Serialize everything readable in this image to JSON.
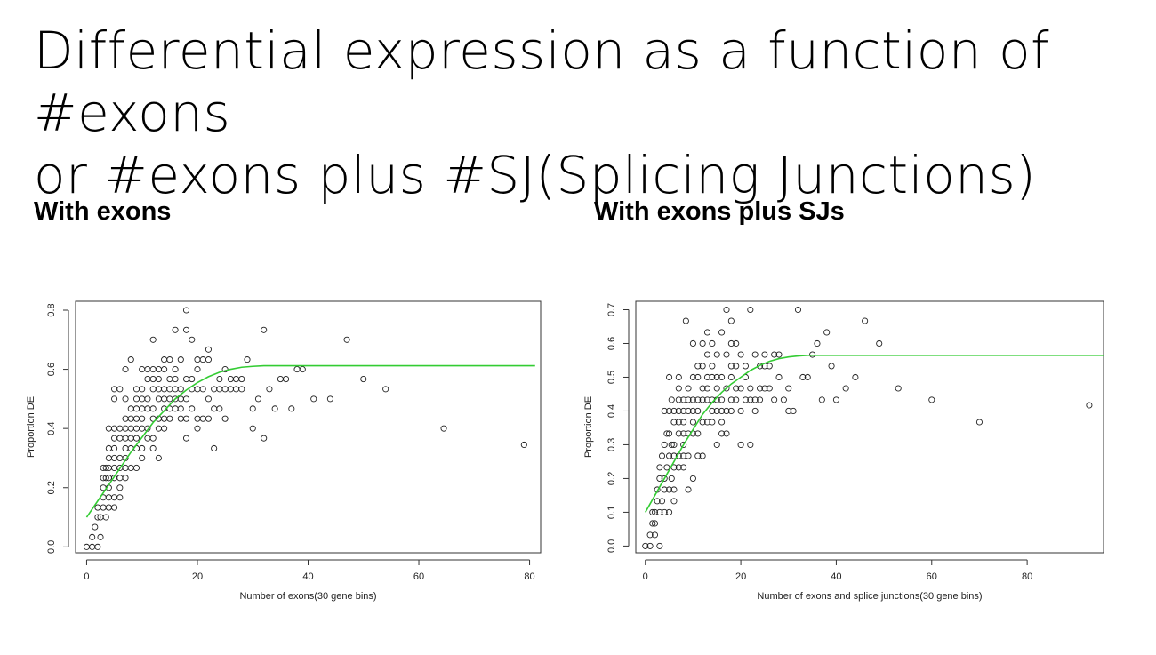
{
  "slide": {
    "title_line1": "Differential expression as a function of #exons",
    "title_line2": "or #exons plus #SJ(Splicing Junctions)"
  },
  "panels": [
    {
      "heading": "With exons"
    },
    {
      "heading": "With exons plus SJs"
    }
  ],
  "chart_data": [
    {
      "type": "scatter",
      "title": "",
      "xlabel": "Number of exons(30 gene bins)",
      "ylabel": "Proportion DE",
      "xlim": [
        -2,
        82
      ],
      "ylim": [
        -0.02,
        0.83
      ],
      "xticks": [
        0,
        20,
        40,
        60,
        80
      ],
      "yticks": [
        0.0,
        0.2,
        0.4,
        0.6,
        0.8
      ],
      "ytick_labels": [
        "0.0",
        "0.2",
        "0.4",
        "0.6",
        "0.8"
      ],
      "grid": false,
      "marker": "open-circle",
      "fit_color": "#33cc33",
      "point_color": "#222222",
      "fit_curve": {
        "name": "",
        "x": [
          0,
          2,
          4,
          6,
          8,
          10,
          12,
          14,
          16,
          18,
          20,
          22,
          24,
          26,
          28,
          30,
          32,
          81
        ],
        "y": [
          0.1,
          0.155,
          0.21,
          0.265,
          0.32,
          0.37,
          0.42,
          0.46,
          0.5,
          0.53,
          0.555,
          0.575,
          0.59,
          0.6,
          0.607,
          0.61,
          0.612,
          0.612
        ]
      },
      "points": {
        "x": [
          0,
          1,
          1,
          1.5,
          2,
          2,
          2,
          2.5,
          2.5,
          3,
          3,
          3,
          3,
          3,
          3.5,
          3.5,
          3.5,
          4,
          4,
          4,
          4,
          4,
          4,
          4,
          4,
          5,
          5,
          5,
          5,
          5,
          5,
          5,
          5,
          5,
          5,
          6,
          6,
          6,
          6,
          6,
          6,
          6,
          6,
          7,
          7,
          7,
          7,
          7,
          7,
          7,
          7,
          7,
          8,
          8,
          8,
          8,
          8,
          8,
          8,
          9,
          9,
          9,
          9,
          9,
          9,
          9,
          9,
          10,
          10,
          10,
          10,
          10,
          10,
          10,
          10,
          11,
          11,
          11,
          11,
          11,
          11,
          12,
          12,
          12,
          12,
          12,
          12,
          12,
          12,
          13,
          13,
          13,
          13,
          13,
          13,
          13,
          14,
          14,
          14,
          14,
          14,
          14,
          14,
          15,
          15,
          15,
          15,
          15,
          15,
          16,
          16,
          16,
          16,
          16,
          16,
          17,
          17,
          17,
          17,
          17,
          18,
          18,
          18,
          18,
          18,
          18,
          19,
          19,
          19,
          19,
          20,
          20,
          20,
          20,
          20,
          21,
          21,
          21,
          22,
          22,
          22,
          22,
          23,
          23,
          23,
          24,
          24,
          24,
          25,
          25,
          25,
          26,
          26,
          27,
          27,
          28,
          28,
          29,
          30,
          30,
          31,
          32,
          32,
          33,
          34,
          35,
          36,
          37,
          38,
          39,
          41,
          44,
          47,
          50,
          54,
          64.5,
          79
        ],
        "y": [
          0.0,
          0.0,
          0.033,
          0.067,
          0.0,
          0.1,
          0.133,
          0.033,
          0.1,
          0.133,
          0.167,
          0.2,
          0.233,
          0.267,
          0.1,
          0.233,
          0.267,
          0.133,
          0.167,
          0.2,
          0.233,
          0.267,
          0.3,
          0.333,
          0.4,
          0.133,
          0.167,
          0.233,
          0.267,
          0.3,
          0.333,
          0.367,
          0.4,
          0.5,
          0.533,
          0.167,
          0.2,
          0.233,
          0.267,
          0.3,
          0.367,
          0.4,
          0.533,
          0.233,
          0.267,
          0.3,
          0.333,
          0.367,
          0.4,
          0.433,
          0.5,
          0.6,
          0.267,
          0.333,
          0.367,
          0.4,
          0.433,
          0.467,
          0.633,
          0.267,
          0.333,
          0.367,
          0.4,
          0.433,
          0.467,
          0.5,
          0.533,
          0.3,
          0.333,
          0.4,
          0.433,
          0.467,
          0.5,
          0.533,
          0.6,
          0.367,
          0.4,
          0.467,
          0.5,
          0.567,
          0.6,
          0.333,
          0.367,
          0.433,
          0.467,
          0.533,
          0.567,
          0.6,
          0.7,
          0.3,
          0.4,
          0.433,
          0.5,
          0.533,
          0.567,
          0.6,
          0.4,
          0.433,
          0.467,
          0.5,
          0.533,
          0.6,
          0.633,
          0.433,
          0.467,
          0.5,
          0.533,
          0.567,
          0.633,
          0.467,
          0.5,
          0.533,
          0.567,
          0.6,
          0.733,
          0.433,
          0.467,
          0.5,
          0.533,
          0.633,
          0.367,
          0.433,
          0.5,
          0.567,
          0.733,
          0.8,
          0.467,
          0.533,
          0.567,
          0.7,
          0.4,
          0.433,
          0.533,
          0.6,
          0.633,
          0.433,
          0.533,
          0.633,
          0.433,
          0.5,
          0.633,
          0.667,
          0.333,
          0.467,
          0.533,
          0.467,
          0.533,
          0.567,
          0.433,
          0.533,
          0.6,
          0.533,
          0.567,
          0.533,
          0.567,
          0.533,
          0.567,
          0.633,
          0.4,
          0.467,
          0.5,
          0.367,
          0.733,
          0.533,
          0.467,
          0.567,
          0.567,
          0.467,
          0.6,
          0.6,
          0.5,
          0.5,
          0.7,
          0.567,
          0.533,
          0.4,
          0.345
        ]
      }
    },
    {
      "type": "scatter",
      "title": "",
      "xlabel": "Number of exons and splice junctions(30 gene bins)",
      "ylabel": "Proportion DE",
      "xlim": [
        -2,
        96
      ],
      "ylim": [
        -0.02,
        0.725
      ],
      "xticks": [
        0,
        20,
        40,
        60,
        80
      ],
      "yticks": [
        0.0,
        0.1,
        0.2,
        0.3,
        0.4,
        0.5,
        0.6,
        0.7
      ],
      "ytick_labels": [
        "0.0",
        "0.1",
        "0.2",
        "0.3",
        "0.4",
        "0.5",
        "0.6",
        "0.7"
      ],
      "grid": false,
      "marker": "open-circle",
      "fit_color": "#33cc33",
      "point_color": "#222222",
      "fit_curve": {
        "name": "",
        "x": [
          0,
          2,
          4,
          6,
          8,
          10,
          12,
          14,
          16,
          18,
          20,
          22,
          24,
          26,
          28,
          30,
          32,
          34,
          96
        ],
        "y": [
          0.1,
          0.15,
          0.2,
          0.25,
          0.3,
          0.345,
          0.39,
          0.425,
          0.455,
          0.48,
          0.5,
          0.52,
          0.535,
          0.547,
          0.555,
          0.56,
          0.563,
          0.565,
          0.565
        ]
      },
      "points": {
        "x": [
          0,
          1,
          1,
          1.5,
          1.5,
          2,
          2,
          2,
          2.5,
          2.5,
          3,
          3,
          3,
          3,
          3.5,
          3.5,
          4,
          4,
          4,
          4,
          4,
          4.5,
          4.5,
          5,
          5,
          5,
          5,
          5,
          5,
          5.5,
          5.5,
          5.5,
          6,
          6,
          6,
          6,
          6,
          6,
          6,
          7,
          7,
          7,
          7,
          7,
          7,
          7,
          7,
          8,
          8,
          8,
          8,
          8,
          8,
          8,
          8.5,
          9,
          9,
          9,
          9,
          9,
          9,
          10,
          10,
          10,
          10,
          10,
          10,
          10,
          11,
          11,
          11,
          11,
          11,
          11,
          12,
          12,
          12,
          12,
          12,
          12,
          13,
          13,
          13,
          13,
          13,
          13,
          14,
          14,
          14,
          14,
          14,
          14,
          15,
          15,
          15,
          15,
          15,
          15,
          16,
          16,
          16,
          16,
          16,
          16,
          17,
          17,
          17,
          17,
          17,
          18,
          18,
          18,
          18,
          18,
          18,
          19,
          19,
          19,
          19,
          20,
          20,
          20,
          20,
          21,
          21,
          21,
          22,
          22,
          22,
          22,
          23,
          23,
          23,
          24,
          24,
          24,
          25,
          25,
          25,
          26,
          26,
          27,
          27,
          28,
          28,
          29,
          30,
          30,
          31,
          32,
          33,
          34,
          35,
          36,
          37,
          38,
          39,
          40,
          42,
          44,
          46,
          49,
          53,
          60,
          70,
          93
        ],
        "y": [
          0.0,
          0.0,
          0.033,
          0.067,
          0.1,
          0.033,
          0.067,
          0.1,
          0.133,
          0.167,
          0.0,
          0.1,
          0.2,
          0.233,
          0.133,
          0.267,
          0.1,
          0.167,
          0.2,
          0.3,
          0.4,
          0.233,
          0.333,
          0.1,
          0.167,
          0.267,
          0.333,
          0.4,
          0.5,
          0.2,
          0.3,
          0.433,
          0.133,
          0.167,
          0.233,
          0.267,
          0.3,
          0.367,
          0.4,
          0.233,
          0.267,
          0.333,
          0.367,
          0.4,
          0.433,
          0.467,
          0.5,
          0.233,
          0.267,
          0.3,
          0.333,
          0.367,
          0.4,
          0.433,
          0.667,
          0.167,
          0.267,
          0.333,
          0.4,
          0.433,
          0.467,
          0.2,
          0.333,
          0.367,
          0.4,
          0.433,
          0.5,
          0.6,
          0.267,
          0.333,
          0.4,
          0.433,
          0.5,
          0.533,
          0.267,
          0.367,
          0.433,
          0.467,
          0.533,
          0.6,
          0.367,
          0.433,
          0.467,
          0.5,
          0.567,
          0.633,
          0.367,
          0.4,
          0.433,
          0.5,
          0.533,
          0.6,
          0.3,
          0.4,
          0.433,
          0.467,
          0.5,
          0.567,
          0.333,
          0.367,
          0.4,
          0.433,
          0.5,
          0.633,
          0.333,
          0.4,
          0.467,
          0.567,
          0.7,
          0.4,
          0.433,
          0.5,
          0.533,
          0.6,
          0.667,
          0.433,
          0.467,
          0.533,
          0.6,
          0.3,
          0.4,
          0.467,
          0.567,
          0.433,
          0.5,
          0.533,
          0.3,
          0.433,
          0.467,
          0.7,
          0.4,
          0.433,
          0.567,
          0.433,
          0.467,
          0.533,
          0.467,
          0.533,
          0.567,
          0.467,
          0.533,
          0.433,
          0.567,
          0.5,
          0.567,
          0.433,
          0.4,
          0.467,
          0.4,
          0.7,
          0.5,
          0.5,
          0.567,
          0.6,
          0.433,
          0.633,
          0.533,
          0.433,
          0.467,
          0.5,
          0.667,
          0.6,
          0.467,
          0.433,
          0.367,
          0.417
        ]
      }
    }
  ]
}
